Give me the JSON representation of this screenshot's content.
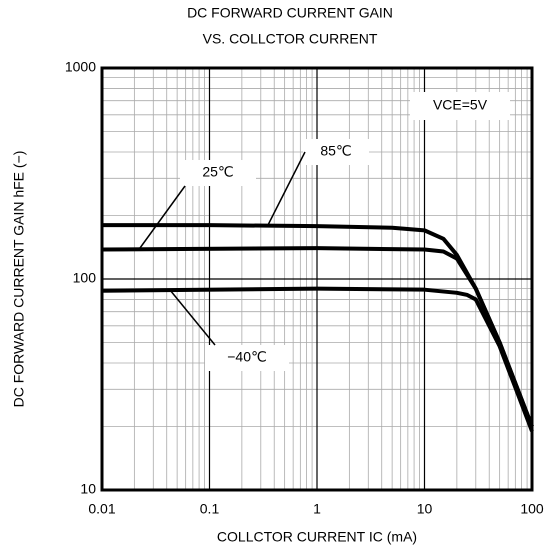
{
  "chart_data": {
    "type": "line",
    "title": "DC FORWARD CURRENT GAIN",
    "subtitle": "VS. COLLCTOR CURRENT",
    "x_label": "COLLCTOR CURRENT  IC (mA)",
    "y_label": "DC FORWARD CURRENT GAIN  hFE (−)",
    "x_log": true,
    "y_log": true,
    "grid": true,
    "xlim": [
      0.01,
      100
    ],
    "xticks": [
      0.01,
      0.1,
      1,
      10,
      100
    ],
    "ylim": [
      10,
      1000
    ],
    "yticks": [
      10,
      100,
      1000
    ],
    "annotations": [
      "VCE=5V",
      "25℃",
      "85℃",
      "−40℃"
    ],
    "series": [
      {
        "name": "85℃",
        "color": "#000000",
        "x": [
          0.01,
          0.1,
          1,
          5,
          10,
          15,
          20,
          30,
          50,
          100
        ],
        "values": [
          180,
          180,
          178,
          175,
          170,
          155,
          130,
          90,
          50,
          20
        ]
      },
      {
        "name": "25℃",
        "color": "#000000",
        "x": [
          0.01,
          1,
          10,
          15,
          20,
          30,
          50,
          100
        ],
        "values": [
          138,
          140,
          138,
          135,
          125,
          90,
          50,
          20
        ]
      },
      {
        "name": "−40℃",
        "color": "#000000",
        "x": [
          0.01,
          1,
          10,
          20,
          25,
          30,
          50,
          100
        ],
        "values": [
          88,
          90,
          89,
          86,
          84,
          80,
          48,
          19
        ]
      }
    ]
  }
}
